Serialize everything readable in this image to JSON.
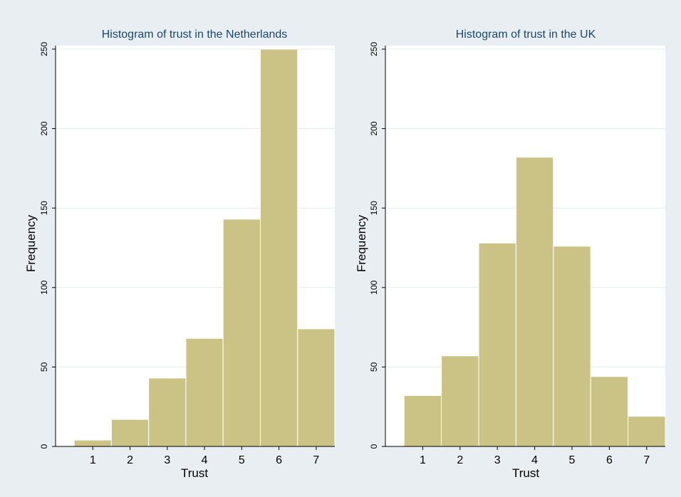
{
  "colors": {
    "background": "#e8eef2",
    "plot_background": "#ffffff",
    "bar_fill": "#cbc285",
    "bar_edge": "#ffffff",
    "gridline": "#e6ecef",
    "title": "#1a476f",
    "axis": "#000000"
  },
  "chart_data": [
    {
      "type": "bar",
      "title": "Histogram of trust in the Netherlands",
      "xlabel": "Trust",
      "ylabel": "Frequency",
      "categories": [
        "1",
        "2",
        "3",
        "4",
        "5",
        "6",
        "7"
      ],
      "values": [
        4,
        17,
        43,
        68,
        143,
        250,
        74
      ],
      "ylim": [
        0,
        250
      ],
      "yticks": [
        0,
        50,
        100,
        150,
        200,
        250
      ],
      "xlim": [
        0,
        7.5
      ],
      "grid": true
    },
    {
      "type": "bar",
      "title": "Histogram of trust in the UK",
      "xlabel": "Trust",
      "ylabel": "Frequency",
      "categories": [
        "1",
        "2",
        "3",
        "4",
        "5",
        "6",
        "7"
      ],
      "values": [
        32,
        57,
        128,
        182,
        126,
        44,
        19
      ],
      "ylim": [
        0,
        250
      ],
      "yticks": [
        0,
        50,
        100,
        150,
        200,
        250
      ],
      "xlim": [
        0,
        7.5
      ],
      "grid": true
    }
  ]
}
